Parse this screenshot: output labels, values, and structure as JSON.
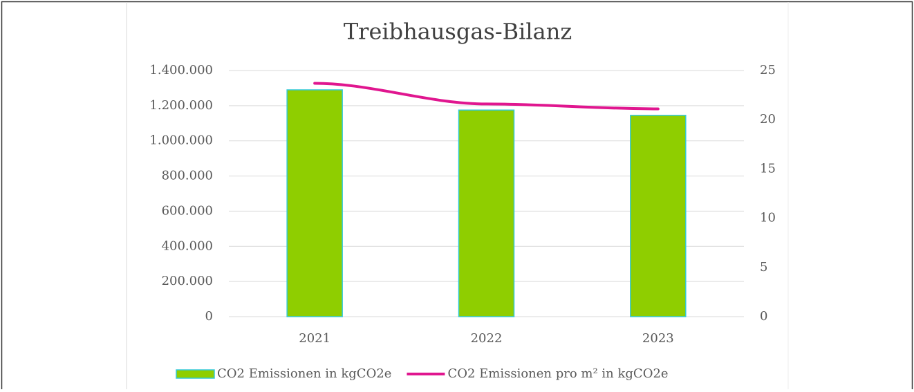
{
  "chart_data": {
    "type": "bar",
    "title": "Treibhausgas-Bilanz",
    "categories": [
      "2021",
      "2022",
      "2023"
    ],
    "series": [
      {
        "name": "CO2 Emissionen in kgCO2e",
        "type": "bar",
        "color": "#8fce00",
        "values": [
          1290000,
          1175000,
          1145000
        ]
      },
      {
        "name": "CO2 Emissionen pro m² in kgCO2e",
        "type": "line",
        "axis": "y2",
        "color": "#e0168f",
        "values": [
          23.7,
          21.6,
          21.1
        ]
      }
    ],
    "ylim": [
      0,
      1400000
    ],
    "yticks": [
      0,
      {
        "value": 200000,
        "label": "200.000"
      },
      {
        "value": 400000,
        "label": "400.000"
      },
      {
        "value": 600000,
        "label": "600.000"
      },
      {
        "value": 800000,
        "label": "800.000"
      },
      {
        "value": 1000000,
        "label": "1.000.000"
      },
      {
        "value": 1200000,
        "label": "1.200.000"
      },
      {
        "value": 1400000,
        "label": "1.400.000"
      }
    ],
    "y2lim": [
      0,
      25
    ],
    "y2ticks": [
      0,
      5,
      10,
      15,
      20,
      25
    ],
    "grid": true,
    "legend": "bottom"
  }
}
